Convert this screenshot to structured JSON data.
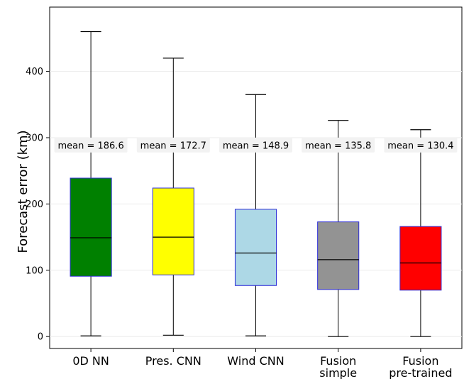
{
  "chart_data": {
    "type": "box",
    "ylabel": "Forecast error (km)",
    "ylim": [
      -18,
      497
    ],
    "yticks": [
      0,
      100,
      200,
      300,
      400
    ],
    "grid": "horizontal",
    "categories": [
      {
        "lines": [
          "0D NN"
        ]
      },
      {
        "lines": [
          "Pres. CNN"
        ]
      },
      {
        "lines": [
          "Wind CNN"
        ]
      },
      {
        "lines": [
          "Fusion",
          "simple"
        ]
      },
      {
        "lines": [
          "Fusion",
          "pre-trained"
        ]
      }
    ],
    "boxes": [
      {
        "whisker_low": 1,
        "q1": 91,
        "median": 149,
        "q3": 239,
        "whisker_high": 460,
        "color": "#008000",
        "edge": "#2b2bd6",
        "mean_label": "mean = 186.6"
      },
      {
        "whisker_low": 2,
        "q1": 93,
        "median": 150,
        "q3": 224,
        "whisker_high": 420,
        "color": "#ffff00",
        "edge": "#2b2bd6",
        "mean_label": "mean = 172.7"
      },
      {
        "whisker_low": 1,
        "q1": 77,
        "median": 126,
        "q3": 192,
        "whisker_high": 365,
        "color": "#add8e6",
        "edge": "#2b2bd6",
        "mean_label": "mean = 148.9"
      },
      {
        "whisker_low": 0,
        "q1": 71,
        "median": 116,
        "q3": 173,
        "whisker_high": 326,
        "color": "#939393",
        "edge": "#2b2bd6",
        "mean_label": "mean = 135.8"
      },
      {
        "whisker_low": 0,
        "q1": 70,
        "median": 111,
        "q3": 166,
        "whisker_high": 312,
        "color": "#ff0000",
        "edge": "#2b2bd6",
        "mean_label": "mean = 130.4"
      }
    ],
    "mean_label_value": 290
  }
}
